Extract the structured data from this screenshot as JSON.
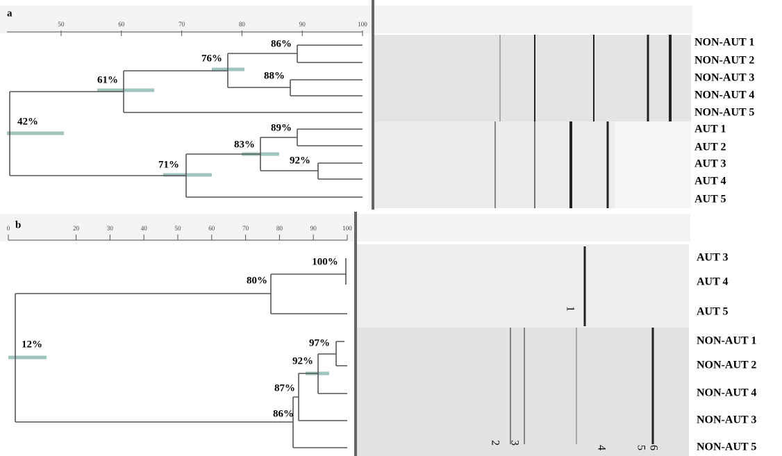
{
  "panel_a": {
    "label": "a",
    "scale_ticks": [
      50,
      60,
      70,
      80,
      90,
      100
    ],
    "nodes": [
      "86%",
      "76%",
      "88%",
      "61%",
      "42%",
      "89%",
      "83%",
      "92%",
      "71%"
    ],
    "lanes": [
      "NON-AUT 1",
      "NON-AUT 2",
      "NON-AUT 3",
      "NON-AUT 4",
      "NON-AUT 5",
      "AUT 1",
      "AUT 2",
      "AUT 3",
      "AUT 4",
      "AUT 5"
    ]
  },
  "panel_b": {
    "label": "b",
    "scale_ticks": [
      0,
      20,
      30,
      40,
      50,
      60,
      70,
      80,
      90,
      100
    ],
    "nodes": [
      "100%",
      "80%",
      "97%",
      "92%",
      "87%",
      "86%",
      "12%"
    ],
    "lanes": [
      "AUT 3",
      "AUT 4",
      "AUT 5",
      "NON-AUT 1",
      "NON-AUT 2",
      "NON-AUT 4",
      "NON-AUT 3",
      "NON-AUT 5"
    ],
    "bands": [
      "1",
      "2",
      "3",
      "4",
      "5",
      "6"
    ]
  }
}
